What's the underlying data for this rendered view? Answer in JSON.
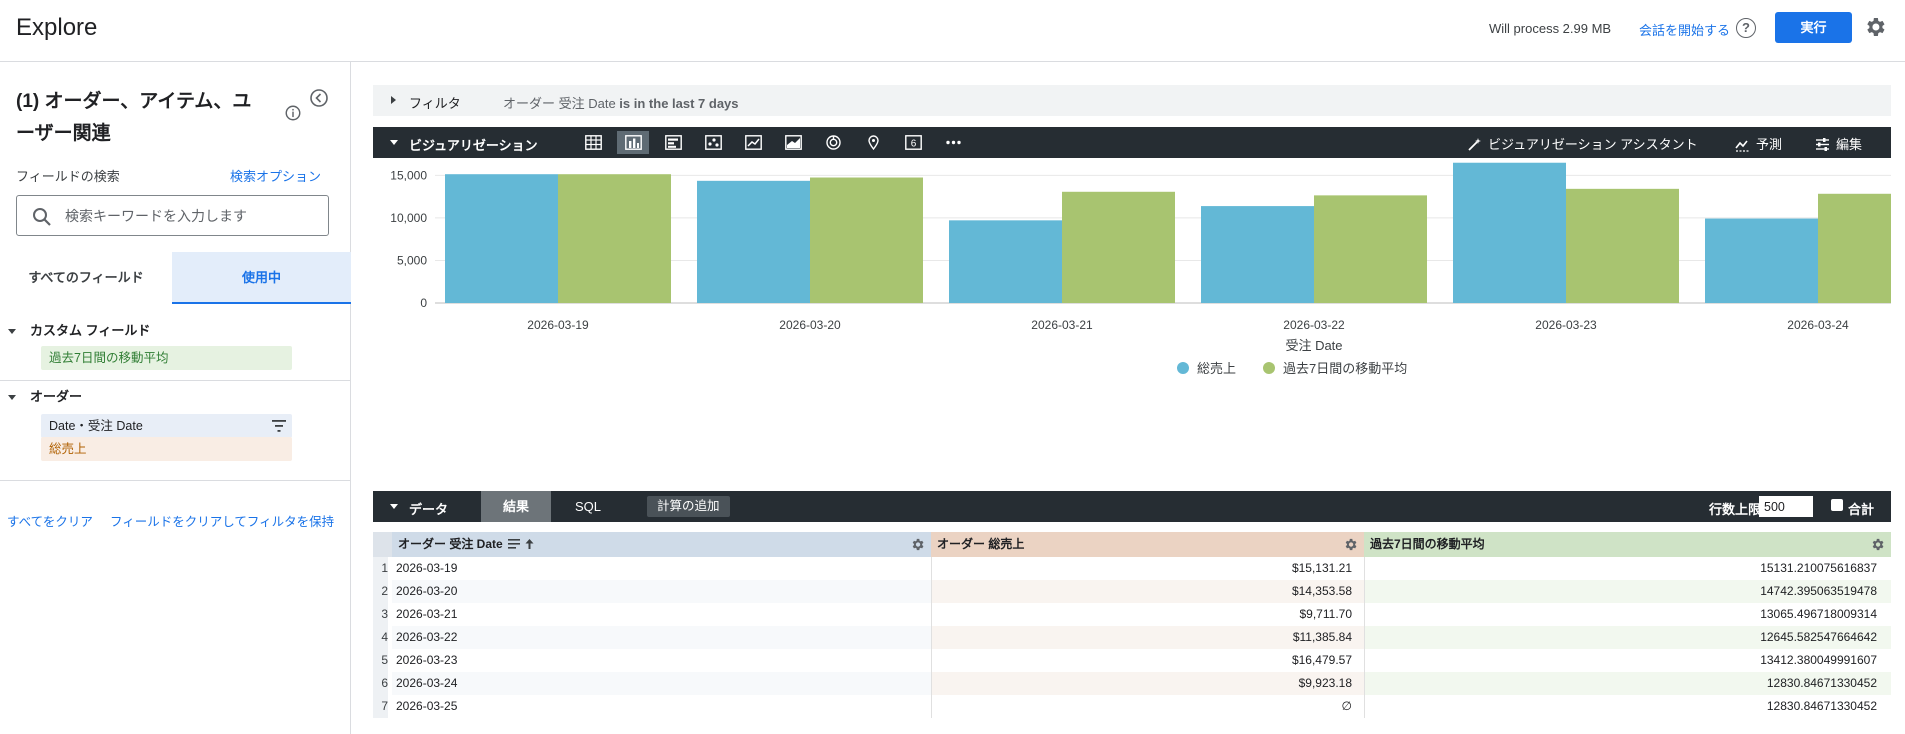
{
  "header": {
    "app_title": "Explore",
    "will_process": "Will process 2.99 MB",
    "start_conversation": "会話を開始する",
    "run_label": "実行"
  },
  "sidebar": {
    "model_title": "(1) オーダー、アイテム、ユーザー関連",
    "field_search_label": "フィールドの検索",
    "search_options": "検索オプション",
    "search_placeholder": "検索キーワードを入力します",
    "tabs": {
      "all": "すべてのフィールド",
      "in_use": "使用中"
    },
    "groups": [
      {
        "title": "カスタム フィールド",
        "fields": [
          "過去7日間の移動平均"
        ]
      },
      {
        "title": "オーダー",
        "fields": [
          "Date・受注 Date",
          "総売上"
        ]
      }
    ],
    "clear_all": "すべてをクリア",
    "clear_keep_filters": "フィールドをクリアしてフィルタを保持"
  },
  "filters": {
    "label": "フィルタ",
    "desc_prefix": "オーダー 受注 Date",
    "desc_bold": " is in the last 7 days"
  },
  "viz_bar": {
    "title": "ビジュアリゼーション",
    "single_value_glyph": "6",
    "assistant": "ビジュアリゼーション アシスタント",
    "forecast": "予測",
    "edit": "編集"
  },
  "chart_data": {
    "type": "bar",
    "categories": [
      "2026-03-19",
      "2026-03-20",
      "2026-03-21",
      "2026-03-22",
      "2026-03-23",
      "2026-03-24"
    ],
    "series": [
      {
        "name": "総売上",
        "color": "#63b8d6",
        "values": [
          15131.21,
          14353.58,
          9711.7,
          11385.84,
          16479.57,
          9923.18
        ]
      },
      {
        "name": "過去7日間の移動平均",
        "color": "#a8c470",
        "values": [
          15131.21,
          14742.4,
          13065.5,
          12645.58,
          13412.38,
          12830.85
        ]
      }
    ],
    "yticks": [
      "0",
      "5,000",
      "10,000",
      "15,000"
    ],
    "ylim": [
      0,
      16800
    ],
    "xlabel": "受注 Date",
    "legend": "bottom-center",
    "grid": true
  },
  "data_bar": {
    "title": "データ",
    "results_tab": "結果",
    "sql_tab": "SQL",
    "add_calc": "計算の追加",
    "row_limit_label": "行数上限",
    "row_limit_value": "500",
    "totals_label": "合計"
  },
  "table": {
    "headers": [
      "オーダー 受注 Date",
      "オーダー 総売上",
      "過去7日間の移動平均"
    ],
    "header_colors": [
      "#cfdbe8",
      "#ebd3c3",
      "#cfe3c6"
    ],
    "rows": [
      {
        "num": "1",
        "date": "2026-03-19",
        "sales": "$15,131.21",
        "avg": "15131.210075616837"
      },
      {
        "num": "2",
        "date": "2026-03-20",
        "sales": "$14,353.58",
        "avg": "14742.395063519478"
      },
      {
        "num": "3",
        "date": "2026-03-21",
        "sales": "$9,711.70",
        "avg": "13065.496718009314"
      },
      {
        "num": "4",
        "date": "2026-03-22",
        "sales": "$11,385.84",
        "avg": "12645.582547664642"
      },
      {
        "num": "5",
        "date": "2026-03-23",
        "sales": "$16,479.57",
        "avg": "13412.380049991607"
      },
      {
        "num": "6",
        "date": "2026-03-24",
        "sales": "$9,923.18",
        "avg": "12830.84671330452"
      },
      {
        "num": "7",
        "date": "2026-03-25",
        "sales": "∅",
        "avg": "12830.84671330452"
      }
    ]
  }
}
